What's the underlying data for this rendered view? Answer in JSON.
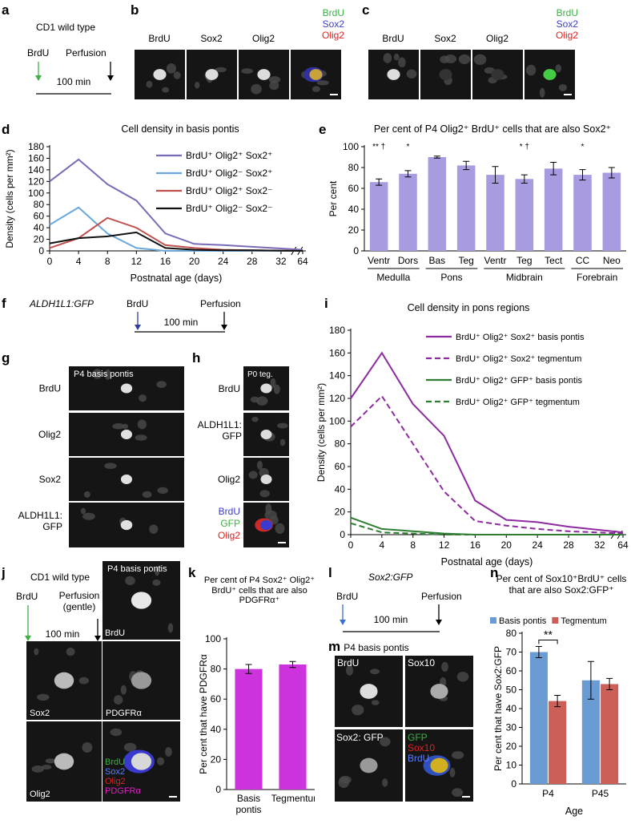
{
  "panels": {
    "a": {
      "letter": "a",
      "strain": "CD1 wild type",
      "injection": "BrdU",
      "perfusion": "Perfusion",
      "interval": "100 min"
    },
    "b": {
      "letter": "b",
      "columns": [
        "BrdU",
        "Sox2",
        "Olig2"
      ],
      "merge": [
        "BrdU",
        "Sox2",
        "Olig2"
      ]
    },
    "c": {
      "letter": "c",
      "columns": [
        "BrdU",
        "Sox2",
        "Olig2"
      ],
      "merge": [
        "BrdU",
        "Sox2",
        "Olig2"
      ]
    },
    "d": {
      "letter": "d"
    },
    "e": {
      "letter": "e"
    },
    "f": {
      "letter": "f",
      "line": "ALDH1L1:GFP",
      "injection": "BrdU",
      "perfusion": "Perfusion",
      "interval": "100 min"
    },
    "g": {
      "letter": "g",
      "region": "P4 basis pontis",
      "rows": [
        "BrdU",
        "Olig2",
        "Sox2",
        "ALDH1L1: GFP"
      ]
    },
    "h": {
      "letter": "h",
      "region": "P0 teg.",
      "rows": [
        "BrdU",
        "ALDH1L1: GFP",
        "Olig2"
      ],
      "merge": [
        "BrdU",
        "GFP",
        "Olig2"
      ]
    },
    "i": {
      "letter": "i"
    },
    "j": {
      "letter": "j",
      "strain": "CD1 wild type",
      "injection": "BrdU",
      "perfusion": "Perfusion (gentle)",
      "interval": "100 min",
      "region": "P4 basis pontis",
      "images": [
        "BrdU",
        "Sox2",
        "PDGFRα",
        "Olig2"
      ],
      "merge": [
        "BrdU",
        "Sox2",
        "Olig2",
        "PDGFRα"
      ]
    },
    "k": {
      "letter": "k"
    },
    "l": {
      "letter": "l",
      "line": "Sox2:GFP",
      "injection": "BrdU",
      "interval": "100 min",
      "perfusion": "Perfusion"
    },
    "m": {
      "letter": "m",
      "region": "P4 basis pontis",
      "images": [
        "BrdU",
        "Sox10",
        "Sox2: GFP"
      ],
      "merge": [
        "GFP",
        "Sox10",
        "BrdU"
      ]
    },
    "n": {
      "letter": "n"
    }
  },
  "chart_data": [
    {
      "type": "line",
      "title": "Cell density in basis pontis",
      "x_label": "Postnatal age (days)",
      "y_label": "Density (cells per mm²)",
      "x": [
        0,
        4,
        8,
        12,
        16,
        20,
        24,
        28,
        64
      ],
      "xlim": [
        0,
        64
      ],
      "xticks": [
        0,
        4,
        8,
        12,
        16,
        20,
        24,
        28,
        32,
        64
      ],
      "axis_break": true,
      "ylim": [
        0,
        180
      ],
      "yticks": [
        0,
        20,
        40,
        60,
        80,
        100,
        120,
        140,
        160,
        180
      ],
      "legend": "upper right",
      "series": [
        {
          "name": "BrdU⁺ Olig2⁺ Sox2⁺",
          "color": "#7a6bb8",
          "values": [
            120,
            158,
            115,
            87,
            30,
            12,
            10,
            7,
            2
          ]
        },
        {
          "name": "BrdU⁺ Olig2⁻ Sox2⁺",
          "color": "#6aa8dc",
          "values": [
            45,
            75,
            30,
            5,
            0,
            0,
            0,
            0,
            0
          ]
        },
        {
          "name": "BrdU⁺ Olig2⁺ Sox2⁻",
          "color": "#c0504d",
          "values": [
            5,
            22,
            57,
            40,
            10,
            5,
            2,
            1,
            0
          ]
        },
        {
          "name": "BrdU⁺ Olig2⁻ Sox2⁻",
          "color": "#111111",
          "values": [
            13,
            22,
            25,
            32,
            5,
            2,
            1,
            1,
            0
          ]
        }
      ]
    },
    {
      "type": "bar",
      "title": "Per cent of P4 Olig2⁺ BrdU⁺ cells that are also Sox2⁺",
      "y_label": "Per cent",
      "categories": [
        "Ventr",
        "Dors",
        "Bas",
        "Teg",
        "Ventr",
        "Teg",
        "Tect",
        "CC",
        "Neo"
      ],
      "groups": [
        "Medulla",
        "Medulla",
        "Pons",
        "Pons",
        "Midbrain",
        "Midbrain",
        "Midbrain",
        "Forebrain",
        "Forebrain"
      ],
      "values": [
        66,
        74,
        90,
        82,
        73,
        69,
        79,
        73,
        75
      ],
      "errors": [
        3,
        3,
        1,
        4,
        8,
        4,
        6,
        5,
        5
      ],
      "significance": [
        "** †",
        "*",
        null,
        null,
        null,
        "* †",
        null,
        "*",
        null
      ],
      "color": "#a99be0",
      "ylim": [
        0,
        100
      ],
      "yticks": [
        0,
        20,
        40,
        60,
        80,
        100
      ]
    },
    {
      "type": "line",
      "title": "Cell density in pons regions",
      "x_label": "Postnatal age (days)",
      "y_label": "Density (cells per mm²)",
      "x": [
        0,
        4,
        8,
        12,
        16,
        20,
        24,
        28,
        64
      ],
      "xlim": [
        0,
        64
      ],
      "xticks": [
        0,
        4,
        8,
        12,
        16,
        20,
        24,
        28,
        32,
        64
      ],
      "axis_break": true,
      "ylim": [
        0,
        180
      ],
      "yticks": [
        0,
        20,
        40,
        60,
        80,
        100,
        120,
        140,
        160,
        180
      ],
      "legend": "upper right",
      "series": [
        {
          "name": "BrdU⁺ Olig2⁺ Sox2⁺ basis pontis",
          "color": "#8e2aa0",
          "line_style": "solid",
          "values": [
            120,
            160,
            115,
            87,
            30,
            13,
            11,
            7,
            2
          ]
        },
        {
          "name": "BrdU⁺ Olig2⁺ Sox2⁺ tegmentum",
          "color": "#8e2aa0",
          "line_style": "dashed",
          "values": [
            95,
            122,
            80,
            38,
            12,
            8,
            5,
            3,
            1
          ]
        },
        {
          "name": "BrdU⁺ Olig2⁺ GFP⁺ basis pontis",
          "color": "#2e7d32",
          "line_style": "solid",
          "values": [
            15,
            5,
            3,
            1,
            0,
            0,
            0,
            0,
            0
          ]
        },
        {
          "name": "BrdU⁺ Olig2⁺ GFP⁺ tegmentum",
          "color": "#2e7d32",
          "line_style": "dashed",
          "values": [
            10,
            2,
            1,
            0,
            0,
            0,
            0,
            0,
            0
          ]
        }
      ]
    },
    {
      "type": "bar",
      "title": "Per cent of P4 Sox2⁺ Olig2⁺ BrdU⁺ cells that are also PDGFRα⁺",
      "y_label": "Per cent that have PDGFRα",
      "categories": [
        "Basis pontis",
        "Tegmentum"
      ],
      "values": [
        80,
        83
      ],
      "errors": [
        3,
        2
      ],
      "color": "#cc33dd",
      "ylim": [
        0,
        100
      ],
      "yticks": [
        0,
        20,
        40,
        60,
        80,
        100
      ]
    },
    {
      "type": "bar",
      "title": "Per cent of Sox10⁺BrdU⁺ cells that are also Sox2:GFP⁺",
      "x_label": "Age",
      "y_label": "Per cent that have Sox2:GFP",
      "categories": [
        "P4",
        "P45"
      ],
      "legend": "top",
      "series": [
        {
          "name": "Basis pontis",
          "color": "#6a9bd3",
          "values": [
            70,
            55
          ],
          "errors": [
            3,
            10
          ]
        },
        {
          "name": "Tegmentum",
          "color": "#cc5f58",
          "values": [
            44,
            53
          ],
          "errors": [
            3,
            3
          ]
        }
      ],
      "significance": [
        "**",
        null
      ],
      "ylim": [
        0,
        80
      ],
      "yticks": [
        0,
        10,
        20,
        30,
        40,
        50,
        60,
        70,
        80
      ]
    }
  ]
}
